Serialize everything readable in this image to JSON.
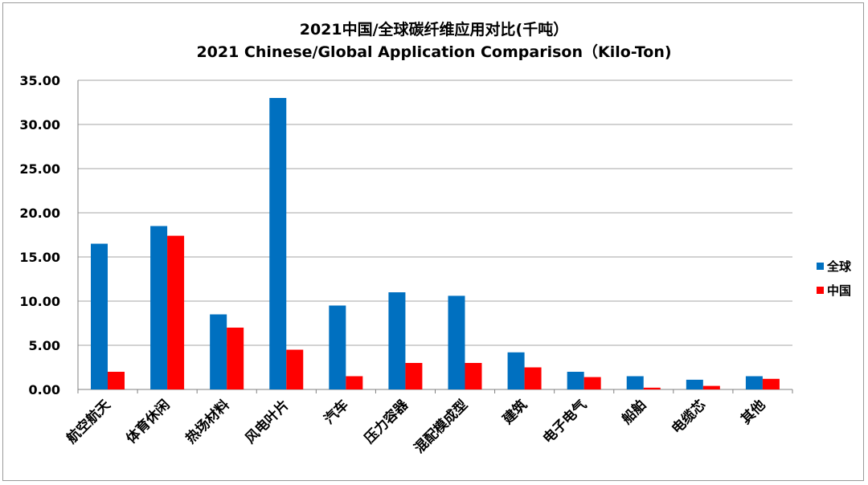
{
  "chart_data": {
    "type": "bar",
    "title": "2021中国/全球碳纤维应用对比(千吨）",
    "subtitle": "2021 Chinese/Global Application Comparison（Kilo-Ton)",
    "xlabel": "",
    "ylabel": "",
    "ylim": [
      0,
      35
    ],
    "yticks": [
      "0.00",
      "5.00",
      "10.00",
      "15.00",
      "20.00",
      "25.00",
      "30.00",
      "35.00"
    ],
    "grid": true,
    "legend_position": "right",
    "categories": [
      "航空航天",
      "体育休闲",
      "热场材料",
      "风电叶片",
      "汽车",
      "压力容器",
      "混配模成型",
      "建筑",
      "电子电气",
      "船舶",
      "电缆芯",
      "其他"
    ],
    "series": [
      {
        "name": "全球",
        "color": "#0070C0",
        "values": [
          16.5,
          18.5,
          8.5,
          33.0,
          9.5,
          11.0,
          10.6,
          4.2,
          2.0,
          1.5,
          1.1,
          1.5
        ]
      },
      {
        "name": "中国",
        "color": "#FF0000",
        "values": [
          2.0,
          17.4,
          7.0,
          4.5,
          1.5,
          3.0,
          3.0,
          2.5,
          1.4,
          0.2,
          0.4,
          1.2
        ]
      }
    ]
  }
}
